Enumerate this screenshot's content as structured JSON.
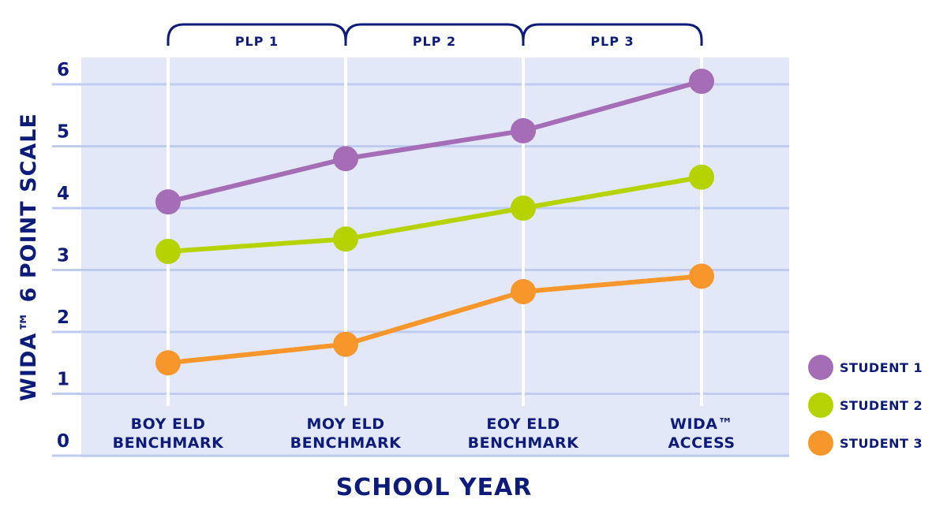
{
  "chart_data": {
    "type": "line",
    "title": "",
    "xlabel": "SCHOOL YEAR",
    "ylabel": "WIDA™ 6 POINT SCALE",
    "ylim": [
      0,
      6
    ],
    "yticks": [
      "0",
      "1",
      "2",
      "3",
      "4",
      "5",
      "6"
    ],
    "grid": true,
    "legend_position": "right",
    "categories": [
      [
        "BOY ELD",
        "BENCHMARK"
      ],
      [
        "MOY ELD",
        "BENCHMARK"
      ],
      [
        "EOY ELD",
        "BENCHMARK"
      ],
      [
        "WIDA™",
        "ACCESS"
      ]
    ],
    "series": [
      {
        "name": "STUDENT 1",
        "color": "#a46db5",
        "values": [
          4.1,
          4.8,
          5.25,
          6.05
        ]
      },
      {
        "name": "STUDENT 2",
        "color": "#b5d300",
        "values": [
          3.3,
          3.5,
          4.0,
          4.5
        ]
      },
      {
        "name": "STUDENT 3",
        "color": "#f7962a",
        "values": [
          1.5,
          1.8,
          2.65,
          2.9
        ]
      }
    ],
    "brackets": [
      {
        "label": "PLP 1",
        "from": 0,
        "to": 1
      },
      {
        "label": "PLP 2",
        "from": 1,
        "to": 2
      },
      {
        "label": "PLP 3",
        "from": 2,
        "to": 3
      }
    ],
    "colors": {
      "plot_background": "#e3e8f8",
      "gridline": "#bfcbef",
      "text": "#0d1b7a"
    }
  }
}
